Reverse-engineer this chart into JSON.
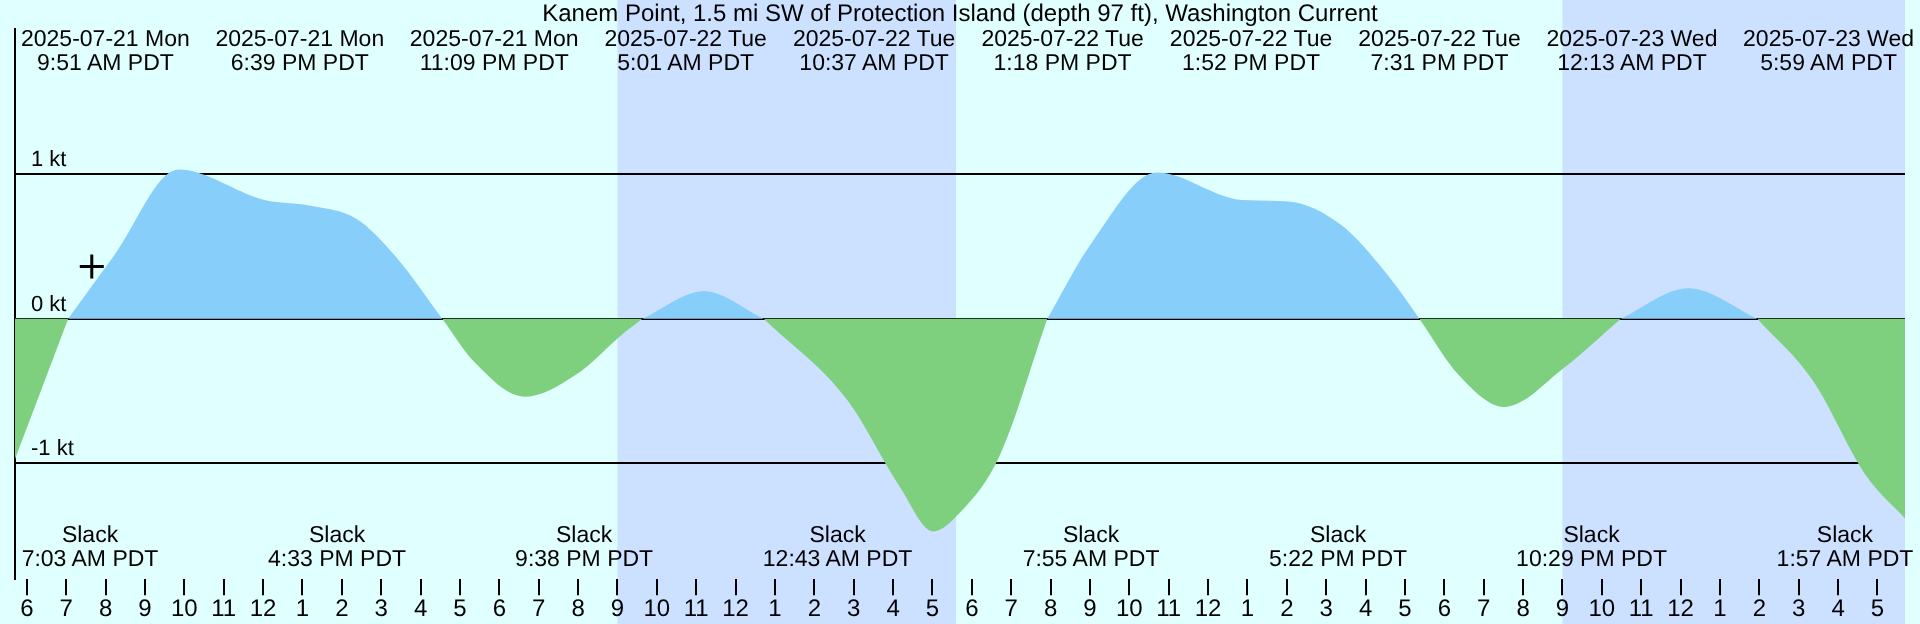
{
  "chart_data": {
    "type": "area",
    "title": "Kanem Point, 1.5 mi SW of Protection Island (depth 97 ft), Washington Current",
    "xlim": [
      "2025-07-21T05:42",
      "2025-07-23T05:42"
    ],
    "xticks": [
      {
        "value": "2025-07-21T06:00",
        "label": "6"
      },
      {
        "value": "2025-07-21T07:00",
        "label": "7"
      },
      {
        "value": "2025-07-21T08:00",
        "label": "8"
      },
      {
        "value": "2025-07-21T09:00",
        "label": "9"
      },
      {
        "value": "2025-07-21T10:00",
        "label": "10"
      },
      {
        "value": "2025-07-21T11:00",
        "label": "11"
      },
      {
        "value": "2025-07-21T12:00",
        "label": "12"
      },
      {
        "value": "2025-07-21T13:00",
        "label": "1"
      },
      {
        "value": "2025-07-21T14:00",
        "label": "2"
      },
      {
        "value": "2025-07-21T15:00",
        "label": "3"
      },
      {
        "value": "2025-07-21T16:00",
        "label": "4"
      },
      {
        "value": "2025-07-21T17:00",
        "label": "5"
      },
      {
        "value": "2025-07-21T18:00",
        "label": "6"
      },
      {
        "value": "2025-07-21T19:00",
        "label": "7"
      },
      {
        "value": "2025-07-21T20:00",
        "label": "8"
      },
      {
        "value": "2025-07-21T21:00",
        "label": "9"
      },
      {
        "value": "2025-07-21T22:00",
        "label": "10"
      },
      {
        "value": "2025-07-21T23:00",
        "label": "11"
      },
      {
        "value": "2025-07-22T00:00",
        "label": "12"
      },
      {
        "value": "2025-07-22T01:00",
        "label": "1"
      },
      {
        "value": "2025-07-22T02:00",
        "label": "2"
      },
      {
        "value": "2025-07-22T03:00",
        "label": "3"
      },
      {
        "value": "2025-07-22T04:00",
        "label": "4"
      },
      {
        "value": "2025-07-22T05:00",
        "label": "5"
      },
      {
        "value": "2025-07-22T06:00",
        "label": "6"
      },
      {
        "value": "2025-07-22T07:00",
        "label": "7"
      },
      {
        "value": "2025-07-22T08:00",
        "label": "8"
      },
      {
        "value": "2025-07-22T09:00",
        "label": "9"
      },
      {
        "value": "2025-07-22T10:00",
        "label": "10"
      },
      {
        "value": "2025-07-22T11:00",
        "label": "11"
      },
      {
        "value": "2025-07-22T12:00",
        "label": "12"
      },
      {
        "value": "2025-07-22T13:00",
        "label": "1"
      },
      {
        "value": "2025-07-22T14:00",
        "label": "2"
      },
      {
        "value": "2025-07-22T15:00",
        "label": "3"
      },
      {
        "value": "2025-07-22T16:00",
        "label": "4"
      },
      {
        "value": "2025-07-22T17:00",
        "label": "5"
      },
      {
        "value": "2025-07-22T18:00",
        "label": "6"
      },
      {
        "value": "2025-07-22T19:00",
        "label": "7"
      },
      {
        "value": "2025-07-22T20:00",
        "label": "8"
      },
      {
        "value": "2025-07-22T21:00",
        "label": "9"
      },
      {
        "value": "2025-07-22T22:00",
        "label": "10"
      },
      {
        "value": "2025-07-22T23:00",
        "label": "11"
      },
      {
        "value": "2025-07-23T00:00",
        "label": "12"
      },
      {
        "value": "2025-07-23T01:00",
        "label": "1"
      },
      {
        "value": "2025-07-23T02:00",
        "label": "2"
      },
      {
        "value": "2025-07-23T03:00",
        "label": "3"
      },
      {
        "value": "2025-07-23T04:00",
        "label": "4"
      },
      {
        "value": "2025-07-23T05:00",
        "label": "5"
      }
    ],
    "ylim": [
      -1.8,
      2
    ],
    "yticks": [
      {
        "value": 1,
        "label": "1 kt"
      },
      {
        "value": 0,
        "label": "0 kt"
      },
      {
        "value": -1,
        "label": "-1 kt"
      }
    ],
    "grid": "y",
    "bands": [
      {
        "axis": "x",
        "from": "2025-07-21T21:00",
        "to": "2025-07-22T05:36",
        "color": "#cce0ff"
      },
      {
        "axis": "x",
        "from": "2025-07-22T21:00",
        "to": "2025-07-23T05:42",
        "color": "#cce0ff"
      }
    ],
    "series": [
      {
        "color": "#87cefa",
        "x": [
          "2025-07-21T07:03",
          "2025-07-21T08:12",
          "2025-07-21T09:51",
          "2025-07-21T12:02",
          "2025-07-21T13:12",
          "2025-07-21T14:22",
          "2025-07-21T15:22",
          "2025-07-21T16:33",
          "2025-07-21T19:00",
          "2025-07-21T21:38",
          "2025-07-21T23:12",
          "2025-07-22T00:43",
          "2025-07-22T04:00",
          "2025-07-22T07:55",
          "2025-07-22T09:02",
          "2025-07-22T10:42",
          "2025-07-22T12:52",
          "2025-07-22T14:02",
          "2025-07-22T15:22",
          "2025-07-22T16:34",
          "2025-07-22T17:22",
          "2025-07-22T20:00",
          "2025-07-22T22:29",
          "2025-07-23T00:12",
          "2025-07-23T01:57"
        ],
        "values": [
          0,
          0.43,
          1.03,
          0.82,
          0.78,
          0.69,
          0.43,
          0,
          null,
          0,
          0.19,
          0,
          null,
          0,
          0.52,
          1.01,
          0.82,
          0.81,
          0.65,
          0.3,
          0,
          null,
          0,
          0.21,
          0
        ]
      },
      {
        "color": "#7ecf7e",
        "x": [
          "2025-07-21T05:42",
          "2025-07-21T07:03",
          "2025-07-21T12:00",
          "2025-07-21T16:33",
          "2025-07-21T17:22",
          "2025-07-21T18:39",
          "2025-07-21T19:56",
          "2025-07-21T21:12",
          "2025-07-21T21:38",
          "2025-07-21T23:00",
          "2025-07-22T00:43",
          "2025-07-22T02:50",
          "2025-07-22T04:10",
          "2025-07-22T05:01",
          "2025-07-22T05:42",
          "2025-07-22T06:42",
          "2025-07-22T07:55",
          "2025-07-22T13:00",
          "2025-07-22T17:22",
          "2025-07-22T18:22",
          "2025-07-22T19:31",
          "2025-07-22T21:02",
          "2025-07-22T22:29",
          "2025-07-23T00:00",
          "2025-07-23T01:57",
          "2025-07-23T03:22",
          "2025-07-23T04:42",
          "2025-07-23T05:42"
        ],
        "values": [
          -0.97,
          0,
          null,
          0,
          -0.3,
          -0.54,
          -0.39,
          -0.09,
          0,
          null,
          0,
          -0.56,
          -1.16,
          -1.47,
          -1.34,
          -0.95,
          0,
          null,
          0,
          -0.39,
          -0.61,
          -0.34,
          0,
          null,
          0,
          -0.43,
          -1.08,
          -1.38
        ]
      },
      {
        "type": "scatter",
        "color": "#000000",
        "marker": "cross",
        "x": [
          "2025-07-21T07:39"
        ],
        "values": [
          0.36
        ]
      }
    ],
    "annotations": [
      "2025-07-21 Mon\n9:51 AM PDT",
      "2025-07-21 Mon\n6:39 PM PDT",
      "2025-07-21 Mon\n11:09 PM PDT",
      "2025-07-22 Tue\n5:01 AM PDT",
      "2025-07-22 Tue\n10:37 AM PDT",
      "2025-07-22 Tue\n1:18 PM PDT",
      "2025-07-22 Tue\n1:52 PM PDT",
      "2025-07-22 Tue\n7:31 PM PDT",
      "2025-07-23 Wed\n12:13 AM PDT",
      "2025-07-23 Wed\n5:59 AM PDT",
      "Slack\n7:03 AM PDT",
      "Slack\n4:33 PM PDT",
      "Slack\n9:38 PM PDT",
      "Slack\n12:43 AM PDT",
      "Slack\n7:55 AM PDT",
      "Slack\n5:22 PM PDT",
      "Slack\n10:29 PM PDT",
      "Slack\n1:57 AM PDT"
    ]
  }
}
